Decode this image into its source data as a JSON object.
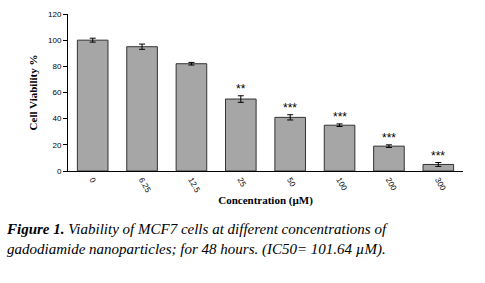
{
  "chart_data": {
    "type": "bar",
    "categories": [
      "0",
      "6.25",
      "12.5",
      "25",
      "50",
      "100",
      "200",
      "300"
    ],
    "values": [
      100,
      95,
      82,
      55,
      41,
      35,
      19,
      5
    ],
    "errors": [
      1.5,
      2,
      1,
      2.5,
      2,
      1,
      1,
      1.5
    ],
    "significance": [
      null,
      null,
      null,
      "**",
      "***",
      "***",
      "***",
      "***"
    ],
    "color": "#a6a6a6",
    "x_label": "Concentration (µM)",
    "y_label": "Cell Viability %",
    "ylim": [
      0,
      120
    ],
    "yticks": [
      0,
      20,
      40,
      60,
      80,
      100,
      120
    ],
    "grid": false,
    "caption_label": "Figure 1.",
    "caption_lines": [
      "Viability of MCF7 cells at different concentrations of",
      "gadodiamide nanoparticles; for 48 hours. (IC50= 101.64 µM)."
    ]
  }
}
